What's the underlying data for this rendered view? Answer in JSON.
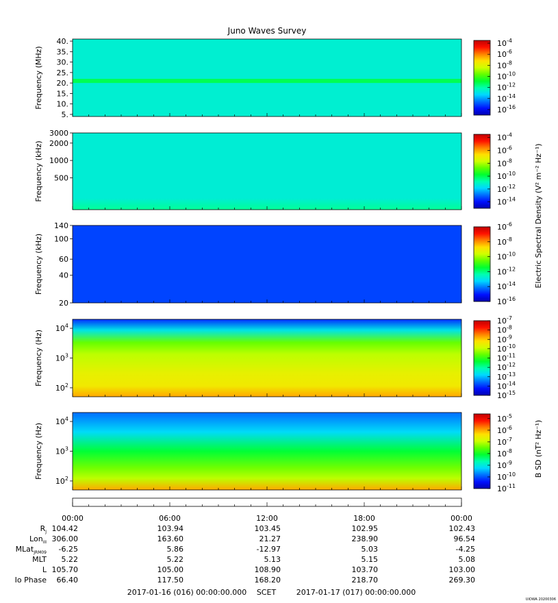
{
  "title": "Juno Waves Survey",
  "colors": {
    "colormap": [
      "#0000b0",
      "#0010ff",
      "#0070ff",
      "#00d8ff",
      "#00ffb0",
      "#00ff30",
      "#60ff00",
      "#d0ff00",
      "#ffe000",
      "#ff8000",
      "#ff1000",
      "#c00000"
    ]
  },
  "chart_data": [
    {
      "type": "heatmap",
      "panel": "HFR high",
      "ylabel": "Frequency (MHz)",
      "yscale": "linear",
      "ylim": [
        4,
        41
      ],
      "yticks": [
        {
          "value": 40,
          "label": "40."
        },
        {
          "value": 35,
          "label": "35."
        },
        {
          "value": 30,
          "label": "30."
        },
        {
          "value": 25,
          "label": "25."
        },
        {
          "value": 20,
          "label": "20."
        },
        {
          "value": 15,
          "label": "15."
        },
        {
          "value": 10,
          "label": "10."
        },
        {
          "value": 5,
          "label": "5."
        }
      ],
      "colorbar": {
        "scale": "log",
        "range_exp": [
          -17,
          -3.5
        ],
        "ticks": [
          {
            "exp": -4,
            "label": "10",
            "sup": "-4"
          },
          {
            "exp": -6,
            "label": "10",
            "sup": "-6"
          },
          {
            "exp": -8,
            "label": "10",
            "sup": "-8"
          },
          {
            "exp": -10,
            "label": "10",
            "sup": "-10"
          },
          {
            "exp": -12,
            "label": "10",
            "sup": "-12"
          },
          {
            "exp": -14,
            "label": "10",
            "sup": "-14"
          },
          {
            "exp": -16,
            "label": "10",
            "sup": "-16"
          }
        ]
      },
      "background_exp": -12.6,
      "bands": [
        {
          "freq": 21,
          "exp": -11.2
        }
      ]
    },
    {
      "type": "heatmap",
      "panel": "HFR low",
      "ylabel": "Frequency (kHz)",
      "yscale": "log",
      "ylim": [
        140,
        3000
      ],
      "yticks": [
        {
          "value": 3000,
          "label": "3000"
        },
        {
          "value": 2000,
          "label": "2000"
        },
        {
          "value": 1000,
          "label": "1000"
        },
        {
          "value": 500,
          "label": "500"
        }
      ],
      "colorbar": {
        "scale": "log",
        "range_exp": [
          -15,
          -3.5
        ],
        "ticks": [
          {
            "exp": -4,
            "label": "10",
            "sup": "-4"
          },
          {
            "exp": -6,
            "label": "10",
            "sup": "-6"
          },
          {
            "exp": -8,
            "label": "10",
            "sup": "-8"
          },
          {
            "exp": -10,
            "label": "10",
            "sup": "-10"
          },
          {
            "exp": -12,
            "label": "10",
            "sup": "-12"
          },
          {
            "exp": -14,
            "label": "10",
            "sup": "-14"
          }
        ]
      },
      "background_exp": -11.3
    },
    {
      "type": "heatmap",
      "panel": "LFR",
      "ylabel": "Frequency (kHz)",
      "yscale": "log",
      "ylim": [
        20,
        140
      ],
      "yticks": [
        {
          "value": 140,
          "label": "140"
        },
        {
          "value": 100,
          "label": "100"
        },
        {
          "value": 60,
          "label": "60"
        },
        {
          "value": 40,
          "label": "40"
        },
        {
          "value": 20,
          "label": "20"
        }
      ],
      "colorbar": {
        "scale": "log",
        "range_exp": [
          -16,
          -6
        ],
        "ticks": [
          {
            "exp": -6,
            "label": "10",
            "sup": "-6"
          },
          {
            "exp": -8,
            "label": "10",
            "sup": "-8"
          },
          {
            "exp": -10,
            "label": "10",
            "sup": "-10"
          },
          {
            "exp": -12,
            "label": "10",
            "sup": "-12"
          },
          {
            "exp": -14,
            "label": "10",
            "sup": "-14"
          },
          {
            "exp": -16,
            "label": "10",
            "sup": "-16"
          }
        ]
      },
      "background_exp": -14.6
    },
    {
      "type": "heatmap",
      "panel": "LFR low",
      "ylabel": "Frequency (Hz)",
      "yscale": "log",
      "ylim": [
        50,
        20000
      ],
      "yticks": [
        {
          "value": 10000,
          "label": "10",
          "sup": "4"
        },
        {
          "value": 1000,
          "label": "10",
          "sup": "3"
        },
        {
          "value": 100,
          "label": "10",
          "sup": "2"
        }
      ],
      "colorbar": {
        "scale": "log",
        "range_exp": [
          -15,
          -7
        ],
        "ticks": [
          {
            "exp": -7,
            "label": "10",
            "sup": "-7"
          },
          {
            "exp": -8,
            "label": "10",
            "sup": "-8"
          },
          {
            "exp": -9,
            "label": "10",
            "sup": "-9"
          },
          {
            "exp": -10,
            "label": "10",
            "sup": "-10"
          },
          {
            "exp": -11,
            "label": "10",
            "sup": "-11"
          },
          {
            "exp": -12,
            "label": "10",
            "sup": "-12"
          },
          {
            "exp": -13,
            "label": "10",
            "sup": "-13"
          },
          {
            "exp": -14,
            "label": "10",
            "sup": "-14"
          },
          {
            "exp": -15,
            "label": "10",
            "sup": "-15"
          }
        ]
      }
    },
    {
      "type": "heatmap",
      "panel": "Magnetic",
      "ylabel": "Frequency (Hz)",
      "yscale": "log",
      "ylim": [
        50,
        20000
      ],
      "yticks": [
        {
          "value": 10000,
          "label": "10",
          "sup": "4"
        },
        {
          "value": 1000,
          "label": "10",
          "sup": "3"
        },
        {
          "value": 100,
          "label": "10",
          "sup": "2"
        }
      ],
      "colorbar": {
        "scale": "log",
        "range_exp": [
          -11,
          -4.6
        ],
        "ticks": [
          {
            "exp": -5,
            "label": "10",
            "sup": "-5"
          },
          {
            "exp": -6,
            "label": "10",
            "sup": "-6"
          },
          {
            "exp": -7,
            "label": "10",
            "sup": "-7"
          },
          {
            "exp": -8,
            "label": "10",
            "sup": "-8"
          },
          {
            "exp": -9,
            "label": "10",
            "sup": "-9"
          },
          {
            "exp": -10,
            "label": "10",
            "sup": "-10"
          },
          {
            "exp": -11,
            "label": "10",
            "sup": "-11"
          }
        ]
      }
    }
  ],
  "colorbar_labels": {
    "electric": "Electric Spectral Density (V² m⁻² Hz⁻¹)",
    "magnetic": "B SD (nT² Hz⁻¹)"
  },
  "time_axis": {
    "xlim_hours": [
      0,
      24
    ],
    "tick_hours": [
      0,
      6,
      12,
      18,
      24
    ],
    "tick_labels": [
      "00:00",
      "06:00",
      "12:00",
      "18:00",
      "00:00"
    ],
    "minor_hours": 1
  },
  "ephemeris": [
    {
      "label": "R",
      "sub": "J",
      "values": [
        "104.42",
        "103.94",
        "103.45",
        "102.95",
        "102.43"
      ]
    },
    {
      "label": "Lon",
      "sub": "III",
      "values": [
        "306.00",
        "163.60",
        "21.27",
        "238.90",
        "96.54"
      ]
    },
    {
      "label": "MLat",
      "sub": "JRM09",
      "values": [
        "-6.25",
        "5.86",
        "-12.97",
        "5.03",
        "-4.25"
      ]
    },
    {
      "label": "MLT",
      "sub": "",
      "values": [
        "5.22",
        "5.22",
        "5.13",
        "5.15",
        "5.08"
      ]
    },
    {
      "label": "L",
      "sub": "",
      "values": [
        "105.70",
        "105.00",
        "108.90",
        "103.70",
        "103.00"
      ]
    },
    {
      "label": "Io Phase",
      "sub": "",
      "values": [
        "66.40",
        "117.50",
        "168.20",
        "218.70",
        "269.30"
      ]
    }
  ],
  "footer": {
    "start": "2017-01-16 (016) 00:00:00.000",
    "scet": "SCET",
    "end": "2017-01-17 (017) 00:00:00.000"
  },
  "credit": "UIOWA 20200306"
}
